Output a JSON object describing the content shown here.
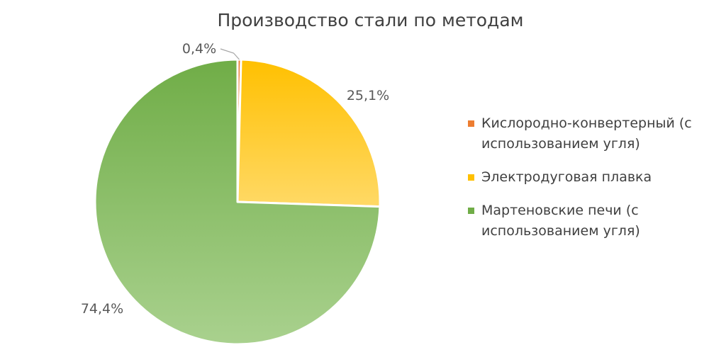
{
  "chart_data": {
    "type": "pie",
    "title": "Производство стали по методам",
    "legend_position": "right",
    "slices": [
      {
        "label": "Кислородно-конвертерный (с использованием угля)",
        "value": 0.4,
        "data_label": "0,4%",
        "color": "#ed7d31"
      },
      {
        "label": "Электродуговая плавка",
        "value": 25.1,
        "data_label": "25,1%",
        "color": "#ffc000"
      },
      {
        "label": "Мартеновские печи (с использованием угля)",
        "value": 74.4,
        "data_label": "74,4%",
        "color": "#70ad47"
      }
    ]
  }
}
